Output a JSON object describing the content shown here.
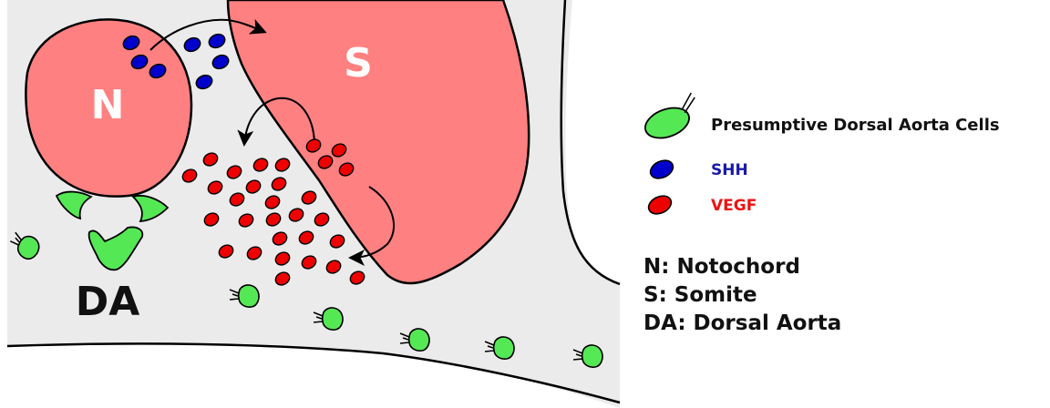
{
  "colors": {
    "tissue_background": "#ebebeb",
    "structure_fill": "#ff8080",
    "outline": "#000000",
    "shh": "#0000cc",
    "vegf": "#ee0000",
    "dorsal_aorta_cell": "#55e855",
    "label_white": "#ffffff",
    "text_dark": "#111111"
  },
  "labels": {
    "notochord": "N",
    "somite": "S",
    "dorsal_aorta": "DA"
  },
  "legend": {
    "cells": {
      "icon": "green-cell-icon",
      "label": "Presumptive Dorsal Aorta Cells",
      "color": "#111111"
    },
    "shh": {
      "icon": "blue-oval-icon",
      "label": "SHH",
      "color": "#1a1aa8"
    },
    "vegf": {
      "icon": "red-oval-icon",
      "label": "VEGF",
      "color": "#ee1111"
    }
  },
  "key": {
    "notochord": "N: Notochord",
    "somite": "S: Somite",
    "dorsal_aorta": "DA: Dorsal Aorta"
  }
}
